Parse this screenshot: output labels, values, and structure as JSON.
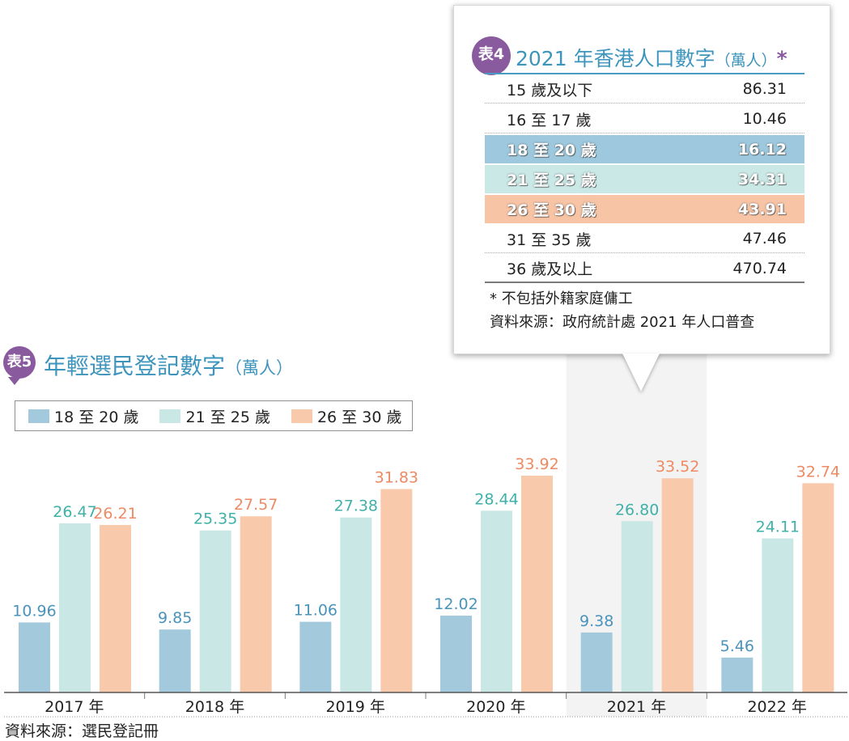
{
  "table5": {
    "badge": "表5",
    "title_main": "年輕選民登記數字",
    "title_unit": "（萬人）",
    "source": "資料來源：選民登記冊"
  },
  "table4": {
    "badge": "表4",
    "title_main": "2021 年香港人口數字",
    "title_unit": "（萬人）",
    "title_star": "*",
    "rows": [
      {
        "label": "15 歲及以下",
        "value": "86.31"
      },
      {
        "label": "16 至 17 歲",
        "value": "10.46"
      },
      {
        "label": "18 至 20 歲",
        "value": "16.12",
        "highlight": "#9dc8dd"
      },
      {
        "label": "21 至 25 歲",
        "value": "34.31",
        "highlight": "#c9e8e6"
      },
      {
        "label": "26 至 30 歲",
        "value": "43.91",
        "highlight": "#f7c4a5"
      },
      {
        "label": "31 至 35 歲",
        "value": "47.46"
      },
      {
        "label": "36 歲及以上",
        "value": "470.74"
      }
    ],
    "note": "* 不包括外籍家庭傭工",
    "source": "資料來源：政府統計處 2021 年人口普查"
  },
  "chart_data": {
    "type": "bar",
    "title": "年輕選民登記數字（萬人）",
    "categories": [
      "2017 年",
      "2018 年",
      "2019 年",
      "2020 年",
      "2021 年",
      "2022 年"
    ],
    "highlight_category": "2021 年",
    "ylim": [
      0,
      40
    ],
    "grid": false,
    "legend_position": "top-left",
    "series": [
      {
        "name": "18 至 20 歲",
        "values": [
          10.96,
          9.85,
          11.06,
          12.02,
          9.38,
          5.46
        ],
        "color": "#a3c9dc",
        "label_color": "#4a93bb"
      },
      {
        "name": "21 至 25 歲",
        "values": [
          26.47,
          25.35,
          27.38,
          28.44,
          26.8,
          24.11
        ],
        "color": "#c8e7e5",
        "label_color": "#3fb1a8"
      },
      {
        "name": "26 至 30 歲",
        "values": [
          26.21,
          27.57,
          31.83,
          33.92,
          33.52,
          32.74
        ],
        "color": "#f8c9ab",
        "label_color": "#ee8a63"
      }
    ]
  }
}
